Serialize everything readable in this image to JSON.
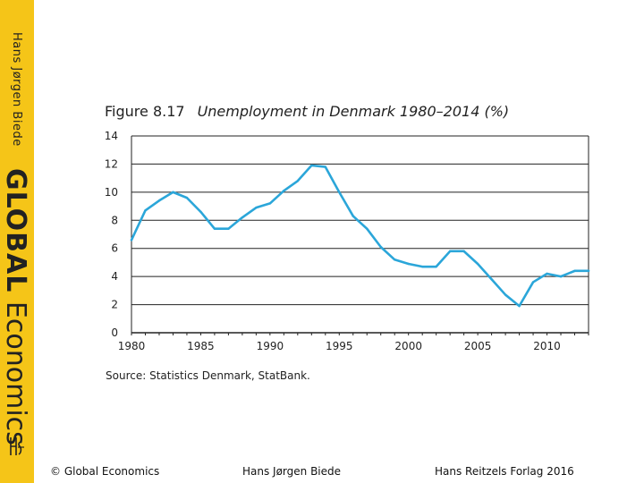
{
  "sidebar": {
    "author": "Hans Jørgen Biede",
    "book_title_bold": "GLOBAL",
    "book_title_light": "Economics",
    "logo_icon": "publisher-monogram-icon"
  },
  "figure": {
    "number": "Figure 8.17",
    "caption": "Unemployment in Denmark 1980–2014 (%)",
    "source": "Source: Statistics Denmark, StatBank."
  },
  "footer": {
    "copyright": "© Global Economics",
    "author": "Hans Jørgen Biede",
    "publisher": "Hans Reitzels Forlag 2016"
  },
  "colors": {
    "sidebar": "#f5c518",
    "line": "#2ba6d9",
    "gridline": "#222222"
  },
  "chart_data": {
    "type": "line",
    "title": "Unemployment in Denmark 1980–2014 (%)",
    "xlabel": "",
    "ylabel": "",
    "xlim": [
      1980,
      2013
    ],
    "ylim": [
      0,
      14
    ],
    "x_ticks": [
      1980,
      1985,
      1990,
      1995,
      2000,
      2005,
      2010
    ],
    "y_ticks": [
      0,
      2,
      4,
      6,
      8,
      10,
      12,
      14
    ],
    "grid": true,
    "x": [
      1980,
      1981,
      1982,
      1983,
      1984,
      1985,
      1986,
      1987,
      1988,
      1989,
      1990,
      1991,
      1992,
      1993,
      1994,
      1995,
      1996,
      1997,
      1998,
      1999,
      2000,
      2001,
      2002,
      2003,
      2004,
      2005,
      2006,
      2007,
      2008,
      2009,
      2010,
      2011,
      2012,
      2013
    ],
    "series": [
      {
        "values": [
          6.6,
          8.7,
          9.4,
          10.0,
          9.6,
          8.6,
          7.4,
          7.4,
          8.2,
          8.9,
          9.2,
          10.1,
          10.8,
          11.9,
          11.8,
          10.0,
          8.3,
          7.4,
          6.1,
          5.2,
          4.9,
          4.7,
          4.7,
          5.8,
          5.8,
          4.9,
          3.8,
          2.7,
          1.9,
          3.6,
          4.2,
          4.0,
          4.4,
          4.4
        ]
      }
    ]
  }
}
